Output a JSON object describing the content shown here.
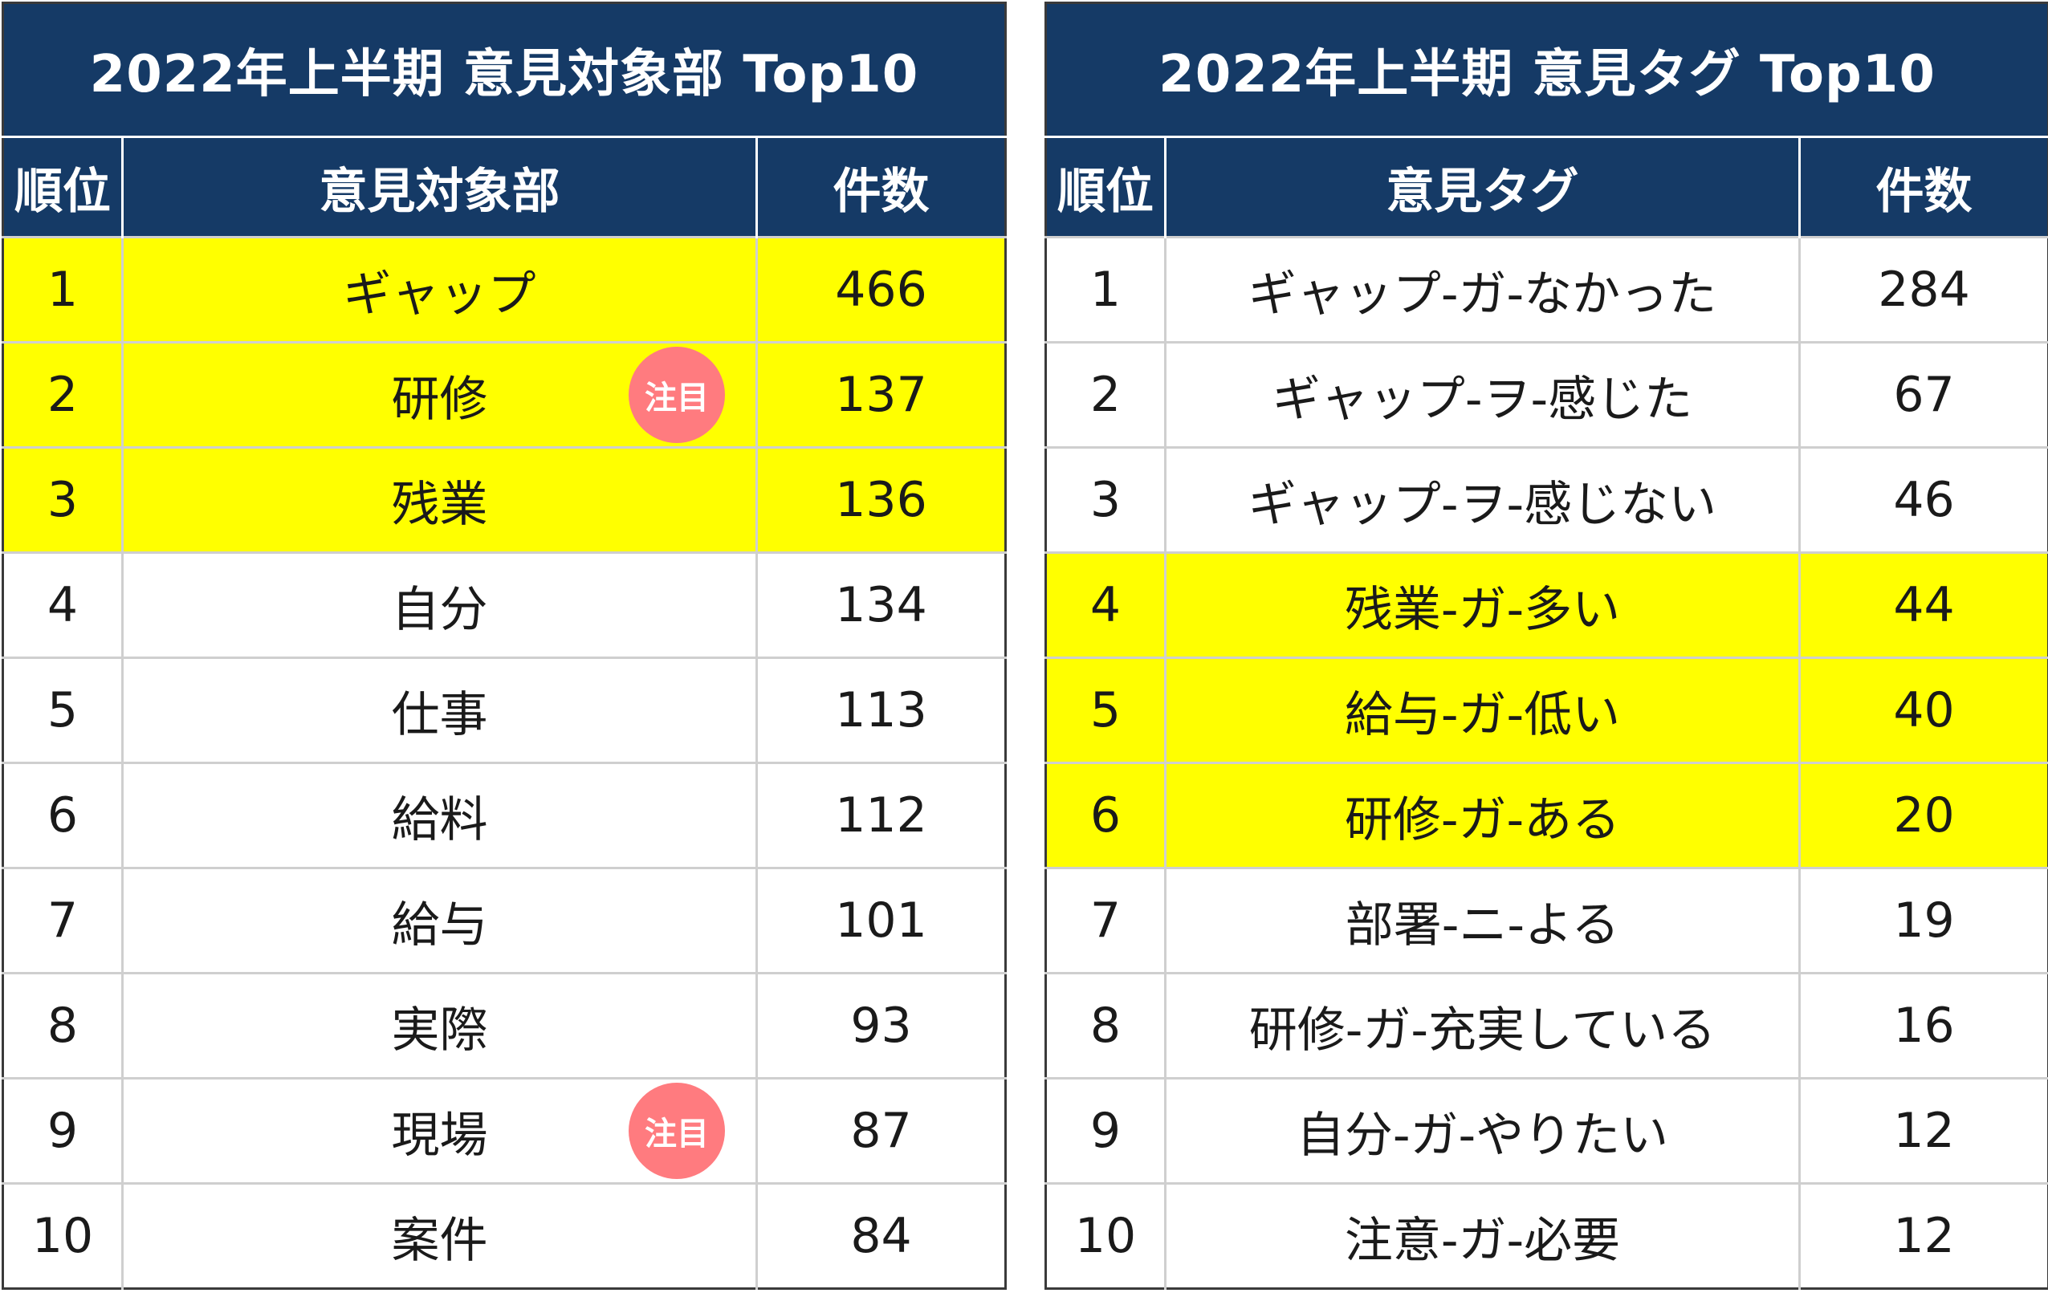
{
  "left": {
    "title": "2022年上半期 意見対象部 Top10",
    "headers": {
      "rank": "順位",
      "name": "意見対象部",
      "count": "件数"
    },
    "rows": [
      {
        "rank": "1",
        "name": "ギャップ",
        "count": "466",
        "highlight": true
      },
      {
        "rank": "2",
        "name": "研修",
        "count": "137",
        "highlight": true,
        "badge": "注目"
      },
      {
        "rank": "3",
        "name": "残業",
        "count": "136",
        "highlight": true
      },
      {
        "rank": "4",
        "name": "自分",
        "count": "134"
      },
      {
        "rank": "5",
        "name": "仕事",
        "count": "113"
      },
      {
        "rank": "6",
        "name": "給料",
        "count": "112"
      },
      {
        "rank": "7",
        "name": "給与",
        "count": "101"
      },
      {
        "rank": "8",
        "name": "実際",
        "count": "93"
      },
      {
        "rank": "9",
        "name": "現場",
        "count": "87",
        "badge": "注目"
      },
      {
        "rank": "10",
        "name": "案件",
        "count": "84"
      }
    ]
  },
  "right": {
    "title": "2022年上半期 意見タグ Top10",
    "headers": {
      "rank": "順位",
      "name": "意見タグ",
      "count": "件数"
    },
    "rows": [
      {
        "rank": "1",
        "name": "ギャップ-ガ-なかった",
        "count": "284"
      },
      {
        "rank": "2",
        "name": "ギャップ-ヲ-感じた",
        "count": "67"
      },
      {
        "rank": "3",
        "name": "ギャップ-ヲ-感じない",
        "count": "46"
      },
      {
        "rank": "4",
        "name": "残業-ガ-多い",
        "count": "44",
        "highlight": true
      },
      {
        "rank": "5",
        "name": "給与-ガ-低い",
        "count": "40",
        "highlight": true
      },
      {
        "rank": "6",
        "name": "研修-ガ-ある",
        "count": "20",
        "highlight": true
      },
      {
        "rank": "7",
        "name": "部署-ニ-よる",
        "count": "19"
      },
      {
        "rank": "8",
        "name": "研修-ガ-充実している",
        "count": "16"
      },
      {
        "rank": "9",
        "name": "自分-ガ-やりたい",
        "count": "12"
      },
      {
        "rank": "10",
        "name": "注意-ガ-必要",
        "count": "12"
      }
    ]
  },
  "colors": {
    "header_bg": "#153a66",
    "highlight": "#ffff00",
    "badge": "#ff7b7f"
  }
}
